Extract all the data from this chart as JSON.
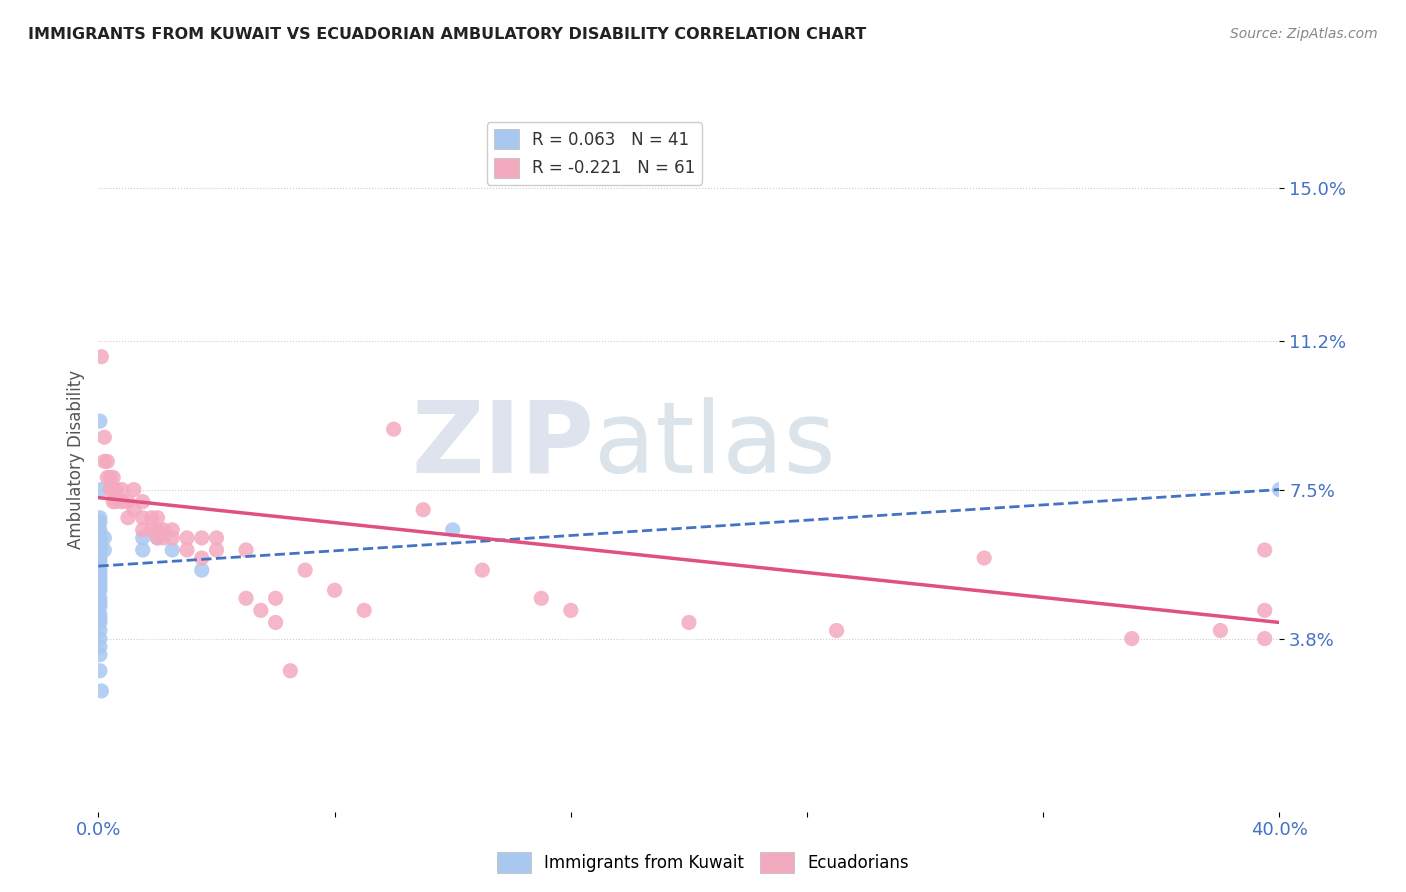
{
  "title": "IMMIGRANTS FROM KUWAIT VS ECUADORIAN AMBULATORY DISABILITY CORRELATION CHART",
  "source": "Source: ZipAtlas.com",
  "ylabel": "Ambulatory Disability",
  "ytick_labels": [
    "15.0%",
    "11.2%",
    "7.5%",
    "3.8%"
  ],
  "ytick_values": [
    0.15,
    0.112,
    0.075,
    0.038
  ],
  "xmin": 0.0,
  "xmax": 0.4,
  "ymin": -0.005,
  "ymax": 0.17,
  "color_kuwait": "#A8C8F0",
  "color_ecuador": "#F4AABE",
  "trend_color_kuwait": "#4472C4",
  "trend_color_ecuador": "#E05080",
  "watermark_zip": "ZIP",
  "watermark_atlas": "atlas",
  "kuwait_points": [
    [
      0.0005,
      0.092
    ],
    [
      0.001,
      0.075
    ],
    [
      0.0005,
      0.068
    ],
    [
      0.0005,
      0.067
    ],
    [
      0.0005,
      0.065
    ],
    [
      0.0005,
      0.064
    ],
    [
      0.0005,
      0.063
    ],
    [
      0.0005,
      0.062
    ],
    [
      0.0005,
      0.061
    ],
    [
      0.0005,
      0.06
    ],
    [
      0.0005,
      0.059
    ],
    [
      0.0005,
      0.058
    ],
    [
      0.0005,
      0.057
    ],
    [
      0.0005,
      0.056
    ],
    [
      0.0005,
      0.055
    ],
    [
      0.0005,
      0.054
    ],
    [
      0.0005,
      0.053
    ],
    [
      0.0005,
      0.052
    ],
    [
      0.0005,
      0.051
    ],
    [
      0.0005,
      0.05
    ],
    [
      0.0005,
      0.048
    ],
    [
      0.0005,
      0.047
    ],
    [
      0.0005,
      0.046
    ],
    [
      0.0005,
      0.044
    ],
    [
      0.0005,
      0.043
    ],
    [
      0.0005,
      0.042
    ],
    [
      0.0005,
      0.04
    ],
    [
      0.0005,
      0.038
    ],
    [
      0.0005,
      0.036
    ],
    [
      0.0005,
      0.034
    ],
    [
      0.0005,
      0.03
    ],
    [
      0.001,
      0.025
    ],
    [
      0.002,
      0.063
    ],
    [
      0.002,
      0.06
    ],
    [
      0.015,
      0.063
    ],
    [
      0.015,
      0.06
    ],
    [
      0.02,
      0.063
    ],
    [
      0.025,
      0.06
    ],
    [
      0.035,
      0.055
    ],
    [
      0.12,
      0.065
    ],
    [
      0.4,
      0.075
    ]
  ],
  "ecuador_points": [
    [
      0.001,
      0.108
    ],
    [
      0.002,
      0.088
    ],
    [
      0.002,
      0.082
    ],
    [
      0.003,
      0.082
    ],
    [
      0.003,
      0.078
    ],
    [
      0.004,
      0.078
    ],
    [
      0.004,
      0.075
    ],
    [
      0.005,
      0.078
    ],
    [
      0.005,
      0.075
    ],
    [
      0.005,
      0.072
    ],
    [
      0.006,
      0.075
    ],
    [
      0.006,
      0.072
    ],
    [
      0.008,
      0.075
    ],
    [
      0.008,
      0.072
    ],
    [
      0.01,
      0.072
    ],
    [
      0.01,
      0.068
    ],
    [
      0.012,
      0.075
    ],
    [
      0.012,
      0.07
    ],
    [
      0.015,
      0.072
    ],
    [
      0.015,
      0.068
    ],
    [
      0.015,
      0.065
    ],
    [
      0.018,
      0.068
    ],
    [
      0.018,
      0.065
    ],
    [
      0.02,
      0.068
    ],
    [
      0.02,
      0.065
    ],
    [
      0.02,
      0.063
    ],
    [
      0.022,
      0.065
    ],
    [
      0.022,
      0.063
    ],
    [
      0.025,
      0.065
    ],
    [
      0.025,
      0.063
    ],
    [
      0.03,
      0.063
    ],
    [
      0.03,
      0.06
    ],
    [
      0.035,
      0.063
    ],
    [
      0.035,
      0.058
    ],
    [
      0.04,
      0.063
    ],
    [
      0.04,
      0.06
    ],
    [
      0.05,
      0.06
    ],
    [
      0.05,
      0.048
    ],
    [
      0.055,
      0.045
    ],
    [
      0.06,
      0.048
    ],
    [
      0.06,
      0.042
    ],
    [
      0.065,
      0.03
    ],
    [
      0.07,
      0.055
    ],
    [
      0.08,
      0.05
    ],
    [
      0.09,
      0.045
    ],
    [
      0.1,
      0.09
    ],
    [
      0.11,
      0.07
    ],
    [
      0.13,
      0.055
    ],
    [
      0.15,
      0.048
    ],
    [
      0.16,
      0.045
    ],
    [
      0.2,
      0.042
    ],
    [
      0.25,
      0.04
    ],
    [
      0.3,
      0.058
    ],
    [
      0.35,
      0.038
    ],
    [
      0.38,
      0.04
    ],
    [
      0.395,
      0.06
    ],
    [
      0.395,
      0.045
    ],
    [
      0.395,
      0.038
    ]
  ]
}
